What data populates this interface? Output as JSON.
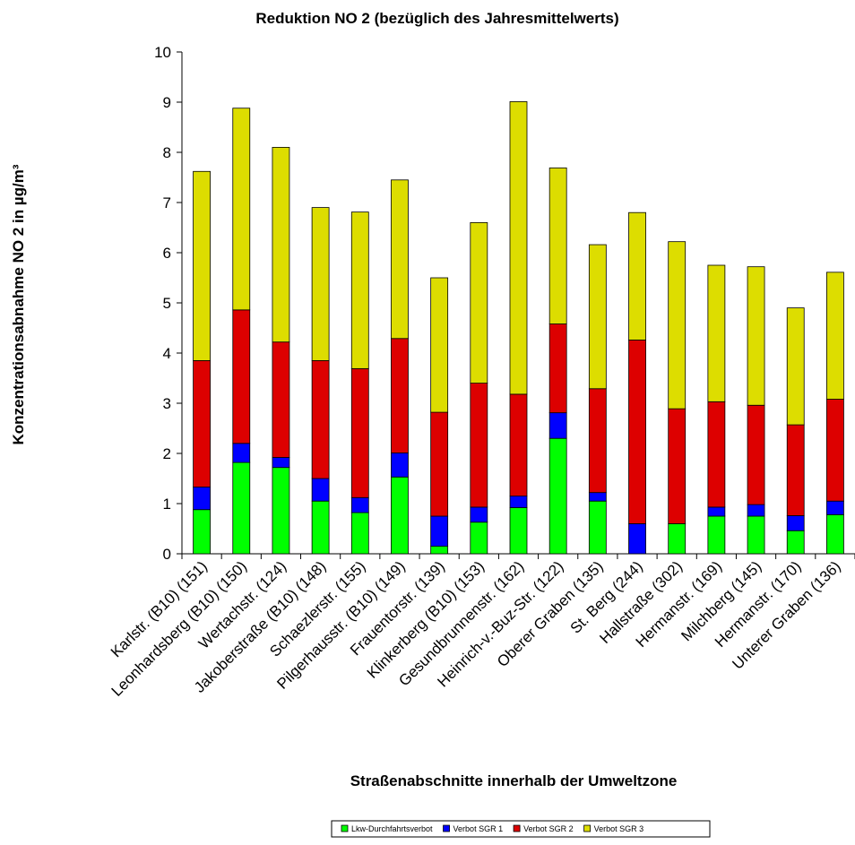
{
  "chart_data": {
    "type": "bar",
    "stacked": true,
    "title": "Reduktion NO 2 (bezüglich des Jahresmittelwerts)",
    "xlabel": "Straßenabschnitte innerhalb der Umweltzone",
    "ylabel": "Konzentrationsabnahme NO 2 in µg/m³",
    "ylim": [
      0,
      10
    ],
    "yticks": [
      "0",
      "1",
      "2",
      "3",
      "4",
      "5",
      "6",
      "7",
      "8",
      "9",
      "10"
    ],
    "grid": false,
    "legend_position": "bottom",
    "categories": [
      "Karlstr. (B10) (151)",
      "Leonhardsberg (B10) (150)",
      "Wertachstr. (124)",
      "Jakoberstraße (B10) (148)",
      "Schaezlerstr. (155)",
      "Pilgerhausstr. (B10) (149)",
      "Frauentorstr. (139)",
      "Klinkerberg (B10) (153)",
      "Gesundbrunnenstr. (162)",
      "Heinrich-v.-Buz-Str. (122)",
      "Oberer Graben (135)",
      "St. Berg (244)",
      "Hallstraße (302)",
      "Hermanstr. (169)",
      "Milchberg (145)",
      "Hermanstr. (170)",
      "Unterer Graben (136)"
    ],
    "series": [
      {
        "name": "Lkw-Durchfahrtsverbot",
        "color": "#00ff00",
        "values": [
          0.88,
          1.82,
          1.72,
          1.05,
          0.82,
          1.53,
          0.15,
          0.63,
          0.92,
          2.3,
          1.05,
          0.0,
          0.6,
          0.75,
          0.75,
          0.46,
          0.78
        ]
      },
      {
        "name": "Verbot SGR 1",
        "color": "#0000ff",
        "values": [
          0.45,
          0.38,
          0.2,
          0.45,
          0.3,
          0.48,
          0.6,
          0.3,
          0.23,
          0.51,
          0.17,
          0.6,
          0.0,
          0.18,
          0.23,
          0.3,
          0.27
        ]
      },
      {
        "name": "Verbot SGR 2",
        "color": "#dd0000",
        "values": [
          2.52,
          2.66,
          2.3,
          2.35,
          2.57,
          2.28,
          2.07,
          2.47,
          2.03,
          1.77,
          2.07,
          3.66,
          2.29,
          2.1,
          1.98,
          1.81,
          2.03
        ]
      },
      {
        "name": "Verbot SGR 3",
        "color": "#dddd00",
        "values": [
          3.77,
          4.02,
          3.88,
          3.05,
          3.12,
          3.16,
          2.68,
          3.2,
          5.83,
          3.11,
          2.87,
          2.54,
          3.33,
          2.72,
          2.76,
          2.33,
          2.53
        ]
      }
    ],
    "legend": [
      "Lkw-Durchfahrtsverbot",
      "Verbot SGR 1",
      "Verbot SGR 2",
      "Verbot SGR 3"
    ]
  }
}
